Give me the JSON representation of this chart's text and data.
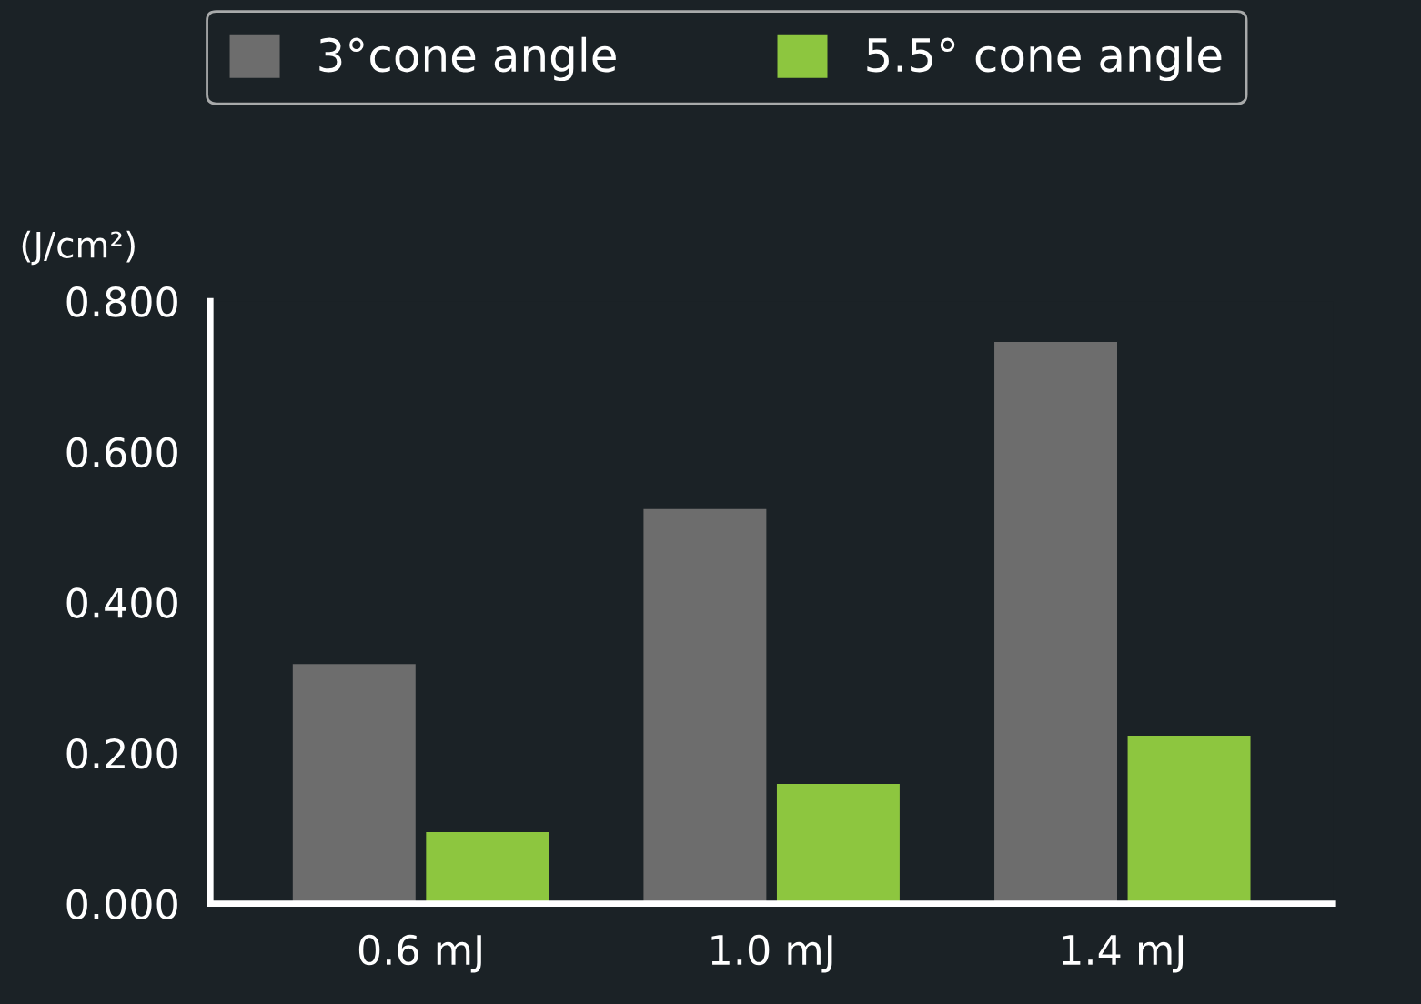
{
  "chart_data": {
    "type": "bar",
    "ylabel": "(J/cm²)",
    "categories": [
      "0.6 mJ",
      "1.0 mJ",
      "1.4 mJ"
    ],
    "series": [
      {
        "name": "3°cone angle",
        "color": "#6d6d6d",
        "values": [
          0.318,
          0.524,
          0.746
        ]
      },
      {
        "name": "5.5° cone angle",
        "color": "#8dc63f",
        "values": [
          0.095,
          0.159,
          0.223
        ]
      }
    ],
    "ylim": [
      0,
      0.8
    ],
    "yticks": [
      {
        "value": 0,
        "label": "0.000"
      },
      {
        "value": 0.2,
        "label": "0.200"
      },
      {
        "value": 0.4,
        "label": "0.400"
      },
      {
        "value": 0.6,
        "label": "0.600"
      },
      {
        "value": 0.8,
        "label": "0.800"
      }
    ],
    "grid": false,
    "legend": "top"
  }
}
